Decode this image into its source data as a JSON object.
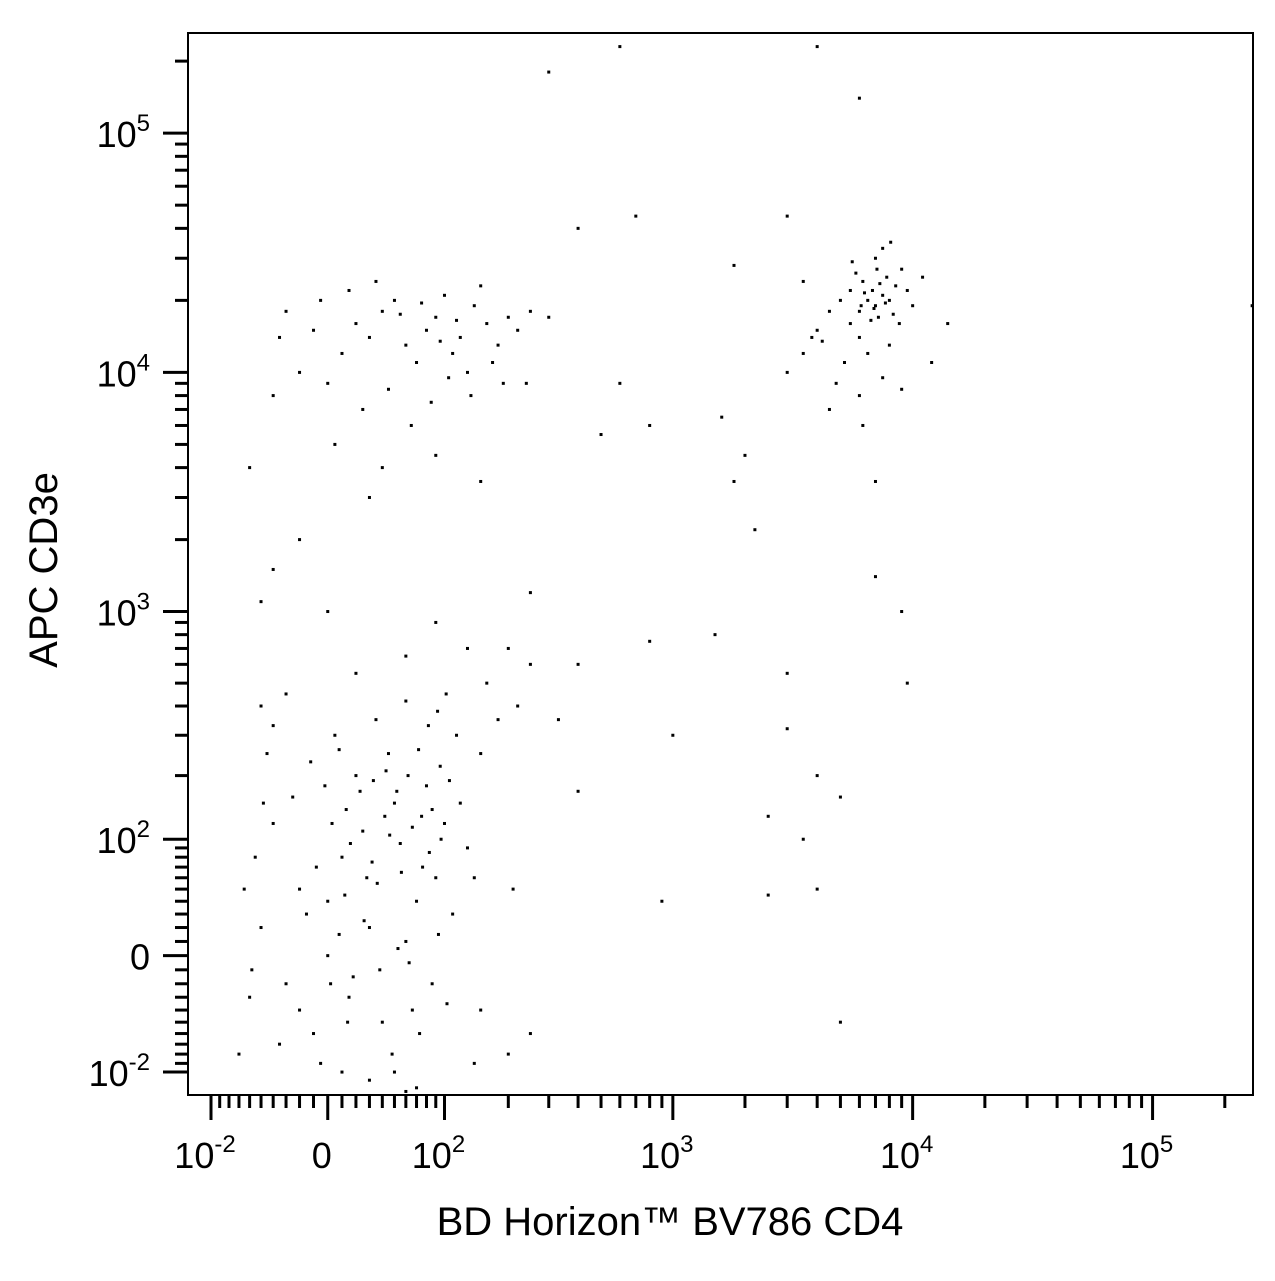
{
  "chart_data": {
    "type": "scatter",
    "xlabel": "BD Horizon™ BV786   CD4",
    "ylabel": "APC  CD3e",
    "xscale": "biexponential",
    "yscale": "biexponential",
    "color": "#000000",
    "xlim": [
      -130,
      262144
    ],
    "ylim": [
      -130,
      262144
    ],
    "xticks": [
      {
        "value": -100,
        "label": "10",
        "sup": "-2"
      },
      0,
      {
        "value": 100,
        "label": "10",
        "sup": "2"
      },
      {
        "value": 1000,
        "label": "10",
        "sup": "3"
      },
      {
        "value": 10000,
        "label": "10",
        "sup": "4"
      },
      {
        "value": 100000,
        "label": "10",
        "sup": "5"
      }
    ],
    "yticks": [
      {
        "value": -100,
        "label": "10",
        "sup": "-2"
      },
      0,
      {
        "value": 100,
        "label": "10",
        "sup": "2"
      },
      {
        "value": 1000,
        "label": "10",
        "sup": "3"
      },
      {
        "value": 10000,
        "label": "10",
        "sup": "4"
      },
      {
        "value": 100000,
        "label": "10",
        "sup": "5"
      }
    ],
    "minor_ticks": [
      -90,
      -80,
      -70,
      -60,
      -50,
      -40,
      -30,
      -20,
      -10,
      10,
      20,
      30,
      40,
      50,
      60,
      70,
      80,
      90,
      200,
      300,
      400,
      500,
      600,
      700,
      800,
      900,
      2000,
      3000,
      4000,
      5000,
      6000,
      7000,
      8000,
      9000,
      20000,
      30000,
      40000,
      50000,
      60000,
      70000,
      80000,
      90000,
      200000
    ],
    "x": [
      -20,
      10,
      30,
      -40,
      50,
      70,
      0,
      15,
      -10,
      40,
      60,
      90,
      110,
      -50,
      -30,
      20,
      45,
      80,
      100,
      130,
      -25,
      5,
      35,
      60,
      -45,
      25,
      55,
      75,
      95,
      115,
      -15,
      12,
      28,
      38,
      48,
      66,
      86,
      -35,
      -5,
      8,
      18,
      32,
      42,
      52,
      62,
      72,
      82,
      92,
      102,
      -55,
      -60,
      -20,
      3,
      13,
      23,
      33,
      43,
      53,
      63,
      73,
      83,
      93,
      103,
      120,
      140,
      150,
      160,
      180,
      200,
      220,
      250,
      130,
      90,
      60,
      20,
      -30,
      -50,
      10,
      30,
      50,
      70,
      0,
      -8,
      16,
      26,
      36,
      46,
      56,
      66,
      76,
      86,
      96,
      106,
      -12,
      -2,
      8,
      -40,
      -58,
      -65,
      -48,
      150,
      140,
      250,
      330,
      400,
      210,
      -70,
      2,
      14,
      -30,
      -10,
      10,
      20,
      30,
      40,
      50,
      60,
      70,
      80,
      90,
      100,
      110,
      120,
      140,
      160,
      180,
      200,
      220,
      250,
      -40,
      -20,
      0,
      25,
      45,
      65,
      85,
      105,
      130,
      150,
      170,
      190,
      -35,
      -5,
      15,
      35,
      55,
      75,
      95,
      115,
      135,
      240,
      300,
      5,
      40,
      90,
      6000,
      6500,
      7000,
      7500,
      8000,
      6800,
      7200,
      6200,
      7800,
      8500,
      5500,
      6000,
      5000,
      4500,
      4000,
      9000,
      9500,
      10000,
      11000,
      5800,
      7000,
      7500,
      6500,
      5200,
      4800,
      6000,
      7500,
      8000,
      8800,
      3500,
      3000,
      4200,
      5500,
      6300,
      6900,
      7300,
      7700,
      8300,
      6100,
      6700,
      7100,
      5600,
      8100,
      3500,
      3800,
      12000,
      14000,
      9000,
      6200,
      4500,
      300,
      700,
      800,
      600,
      1800,
      1600,
      2000,
      1800,
      2200,
      4000,
      6000,
      7000,
      7000,
      9500,
      3000,
      3000,
      4000,
      5000,
      2500,
      3500,
      4000,
      2500,
      1000,
      1500,
      800,
      900,
      5000,
      3000,
      600,
      9000,
      260000,
      400,
      500,
      30,
      150,
      -20,
      -40,
      -60,
      -50,
      0,
      250,
      400,
      200,
      60
    ],
    "y": [
      50,
      80,
      20,
      120,
      150,
      40,
      0,
      -30,
      -60,
      -50,
      10,
      60,
      30,
      20,
      -20,
      200,
      250,
      180,
      120,
      90,
      160,
      300,
      350,
      420,
      250,
      110,
      95,
      130,
      220,
      300,
      30,
      45,
      60,
      -10,
      -80,
      -40,
      -20,
      -70,
      -90,
      15,
      -15,
      75,
      130,
      170,
      200,
      260,
      330,
      380,
      450,
      80,
      -30,
      -40,
      120,
      140,
      170,
      190,
      210,
      5,
      -5,
      -60,
      85,
      15,
      -35,
      150,
      60,
      250,
      500,
      350,
      700,
      400,
      600,
      700,
      900,
      650,
      550,
      450,
      400,
      -100,
      -110,
      -100,
      -120,
      40,
      70,
      95,
      25,
      55,
      105,
      65,
      115,
      70,
      140,
      100,
      190,
      230,
      180,
      260,
      330,
      -10,
      50,
      150,
      -40,
      -90,
      -60,
      350,
      170,
      50,
      -80,
      -20,
      -50,
      18000,
      15000,
      12000,
      16000,
      14000,
      18000,
      20000,
      13000,
      11000,
      15000,
      17000,
      21000,
      12000,
      14000,
      19000,
      16000,
      13000,
      17000,
      15000,
      18000,
      8000,
      10000,
      9000,
      7000,
      8500,
      6000,
      7500,
      9500,
      10000,
      23000,
      11000,
      9000,
      14000,
      20000,
      22000,
      24000,
      17500,
      19500,
      13500,
      16500,
      8000,
      9000,
      17000,
      5000,
      4000,
      4500,
      18000,
      20000,
      19000,
      21000,
      20000,
      22000,
      17000,
      24000,
      25000,
      23000,
      16000,
      14000,
      20000,
      18000,
      15000,
      27000,
      22000,
      19000,
      25000,
      26000,
      30000,
      33000,
      12000,
      11000,
      9000,
      8000,
      9500,
      13000,
      16000,
      12000,
      10000,
      13500,
      22000,
      21500,
      18500,
      23500,
      19500,
      17500,
      19000,
      16500,
      27000,
      29000,
      35000,
      24000,
      14000,
      11000,
      16000,
      8500,
      6000,
      7000,
      180000,
      45000,
      6000,
      9000,
      28000,
      6500,
      4500,
      3500,
      2200,
      230000,
      140000,
      3500,
      1400,
      500,
      550,
      320,
      200,
      160,
      130,
      100,
      50,
      45,
      300,
      800,
      750,
      40,
      -50,
      45000,
      230000,
      1000,
      19000,
      40000,
      5500,
      3000,
      3500,
      2000,
      1500,
      4000,
      1100,
      1000,
      1200,
      600,
      -80,
      -125
    ]
  }
}
